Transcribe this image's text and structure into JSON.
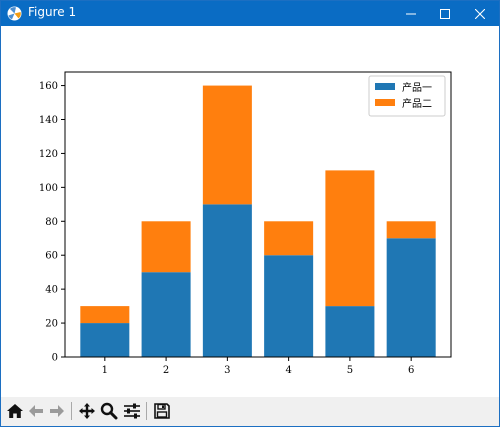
{
  "window": {
    "title": "Figure 1"
  },
  "toolbar": {
    "tools": [
      "home-icon",
      "back-icon",
      "forward-icon",
      "pan-icon",
      "zoom-icon",
      "configure-subplots-icon",
      "save-icon"
    ]
  },
  "colors": {
    "series1": "#1f77b4",
    "series2": "#ff7f0e",
    "titlebar": "#0a6cc4"
  },
  "chart_data": {
    "type": "bar",
    "stacked": true,
    "title": "",
    "xlabel": "",
    "ylabel": "",
    "categories": [
      "1",
      "2",
      "3",
      "4",
      "5",
      "6"
    ],
    "series": [
      {
        "name": "产品一",
        "values": [
          20,
          50,
          90,
          60,
          30,
          70
        ],
        "color": "#1f77b4"
      },
      {
        "name": "产品二",
        "values": [
          10,
          30,
          70,
          20,
          80,
          10
        ],
        "color": "#ff7f0e"
      }
    ],
    "ylim": [
      0,
      168
    ],
    "yticks": [
      0,
      20,
      40,
      60,
      80,
      100,
      120,
      140,
      160
    ],
    "xlim": [
      0.35,
      6.65
    ],
    "grid": false,
    "legend": "top-right"
  }
}
